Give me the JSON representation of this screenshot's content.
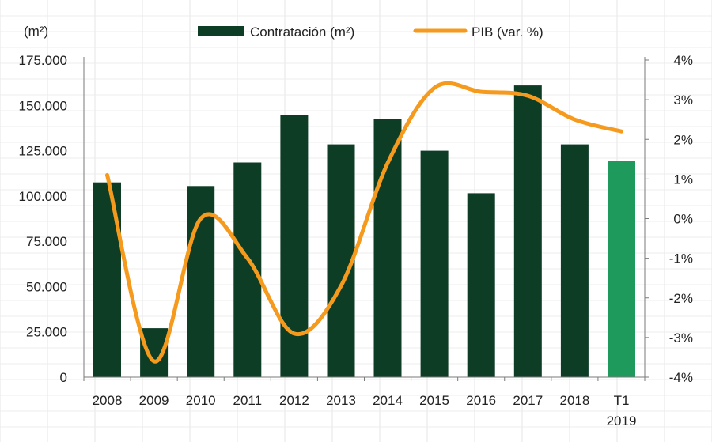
{
  "chart_data": {
    "type": "bar",
    "unit_label": "(m²)",
    "categories": [
      "2008",
      "2009",
      "2010",
      "2011",
      "2012",
      "2013",
      "2014",
      "2015",
      "2016",
      "2017",
      "2018",
      "T1\n2019"
    ],
    "series": [
      {
        "name": "Contratación (m²)",
        "type": "bar",
        "axis": "left",
        "values": [
          107500,
          27000,
          105500,
          118500,
          144500,
          128500,
          142500,
          125000,
          101500,
          161000,
          128500,
          119500
        ],
        "color": "#0e3d26",
        "highlight_color": "#1e9a5c",
        "highlight_index": 11
      },
      {
        "name": "PIB (var. %)",
        "type": "line",
        "axis": "right",
        "values": [
          1.1,
          -3.6,
          0.0,
          -1.0,
          -2.9,
          -1.7,
          1.4,
          3.3,
          3.2,
          3.1,
          2.5,
          2.2
        ],
        "color": "#f59a1c"
      }
    ],
    "y_left": {
      "min": 0,
      "max": 175000,
      "ticks": [
        "0",
        "25.000",
        "50.000",
        "75.000",
        "100.000",
        "125.000",
        "150.000",
        "175.000"
      ]
    },
    "y_right": {
      "min": -4,
      "max": 4,
      "ticks": [
        "-4%",
        "-3%",
        "-2%",
        "-1%",
        "0%",
        "1%",
        "2%",
        "3%",
        "4%"
      ]
    },
    "legend": "top",
    "grid": "background-cells"
  }
}
